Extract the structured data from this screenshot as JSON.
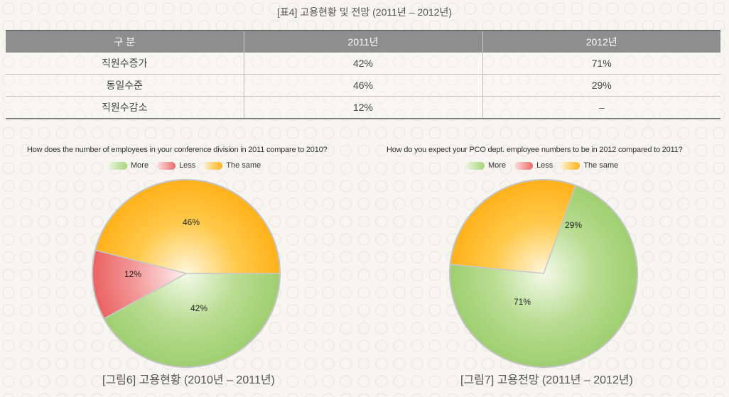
{
  "table": {
    "title": "[표4] 고용현황 및 전망 (2011년 – 2012년)",
    "headers": [
      "구 분",
      "2011년",
      "2012년"
    ],
    "rows": [
      [
        "직원수증가",
        "42%",
        "71%"
      ],
      [
        "동일수준",
        "46%",
        "29%"
      ],
      [
        "직원수감소",
        "12%",
        "–"
      ]
    ]
  },
  "chart_data": [
    {
      "type": "pie",
      "title": "How does the number of employees in your conference division in 2011 compare to 2010?",
      "legend": [
        "More",
        "Less",
        "The same"
      ],
      "legend_position": "top",
      "categories": [
        "More",
        "Less",
        "The same"
      ],
      "values": [
        42,
        12,
        46
      ],
      "labels": [
        "42%",
        "12%",
        "46%"
      ],
      "colors": [
        "#b5da8c",
        "#f07c7c",
        "#ffbf2e"
      ],
      "caption": "[그림6] 고용현황 (2010년 – 2011년)"
    },
    {
      "type": "pie",
      "title": "How do you expect your PCO dept. employee numbers to be in 2012 compared to 2011?",
      "legend": [
        "More",
        "Less",
        "The same"
      ],
      "legend_position": "top",
      "categories": [
        "More",
        "Less",
        "The same"
      ],
      "values": [
        71,
        0,
        29
      ],
      "labels": [
        "71%",
        "",
        "29%"
      ],
      "colors": [
        "#b5da8c",
        "#f07c7c",
        "#ffbf2e"
      ],
      "caption": "[그림7] 고용전망 (2011년 – 2012년)"
    }
  ]
}
